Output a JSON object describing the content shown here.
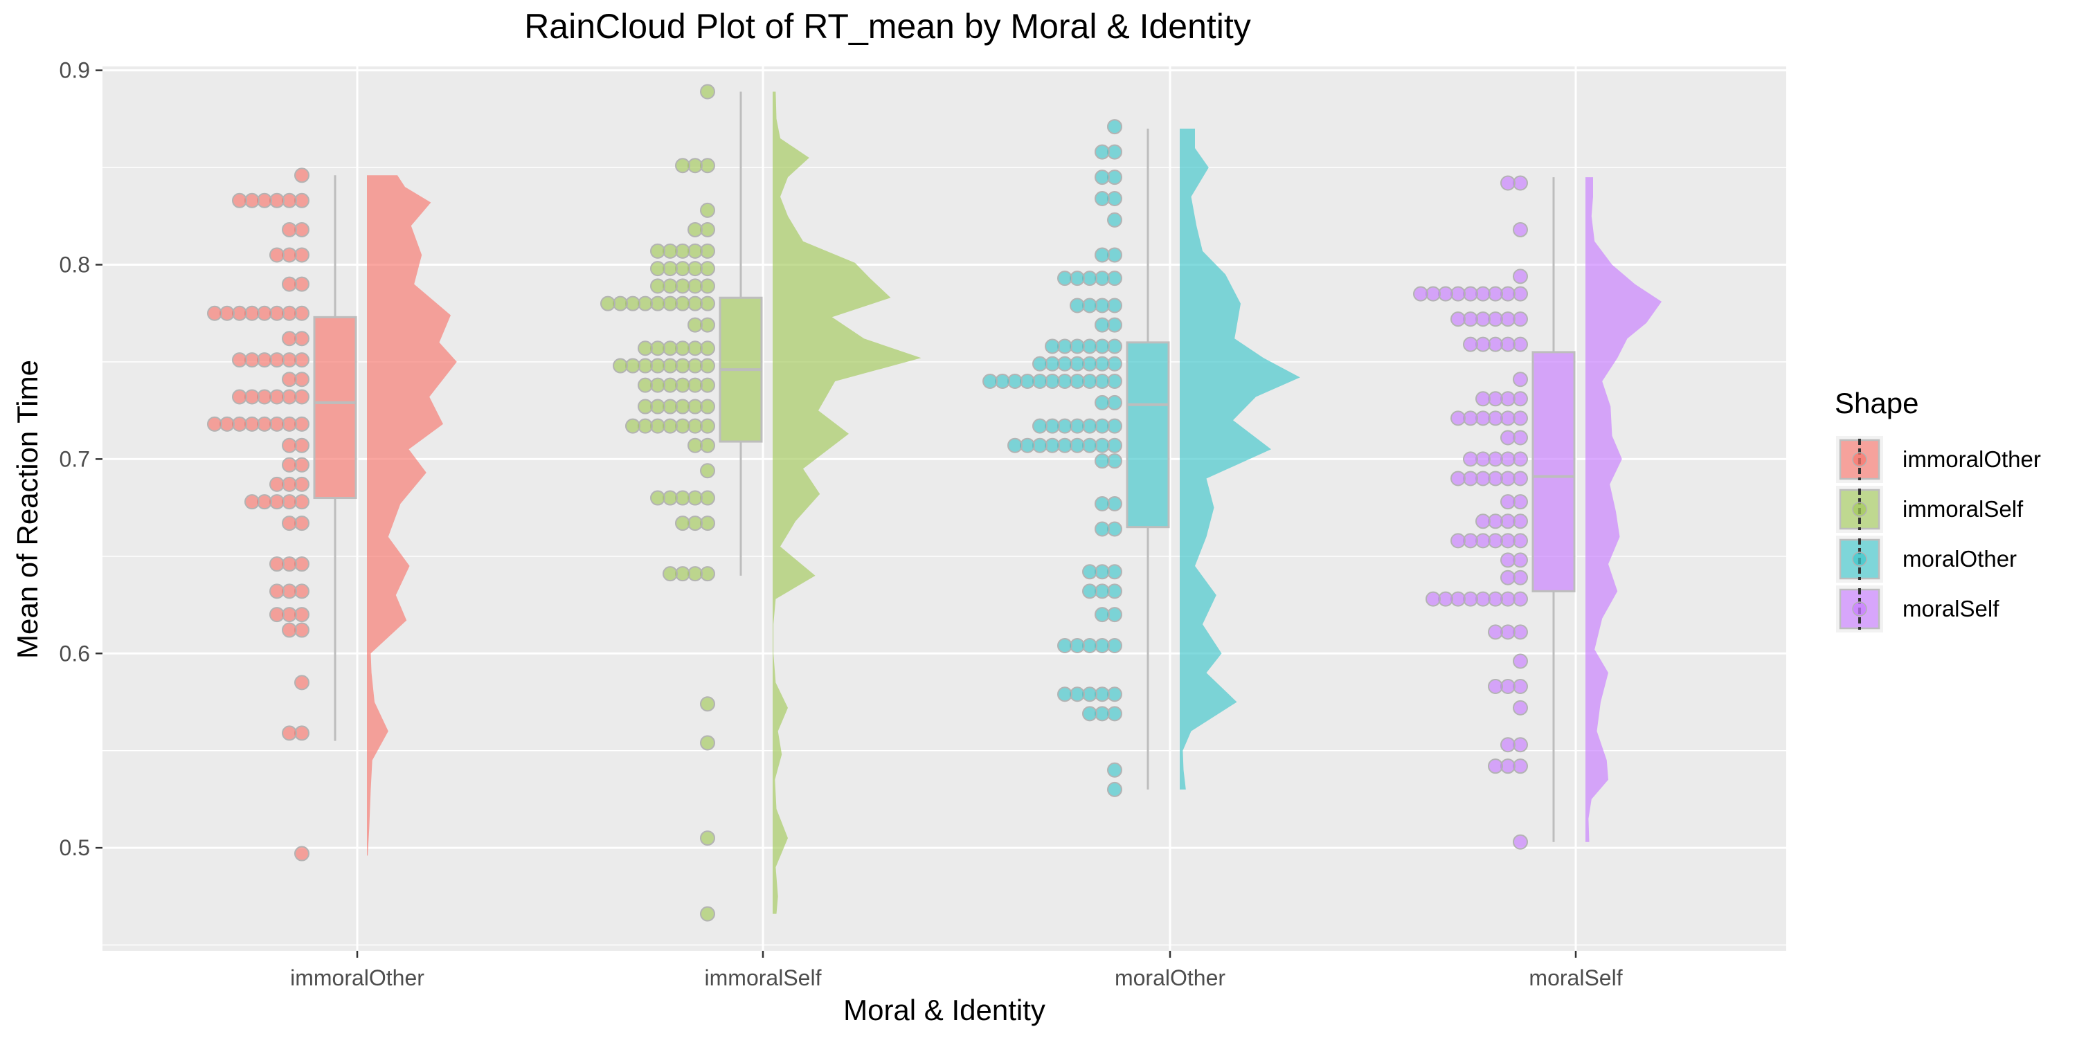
{
  "chart_data": {
    "type": "raincloud",
    "title": "RainCloud Plot of RT_mean by Moral & Identity",
    "xlabel": "Moral & Identity",
    "ylabel": "Mean of Reaction Time",
    "ylim": [
      0.447,
      0.902
    ],
    "yticks": [
      0.5,
      0.6,
      0.7,
      0.8,
      0.9
    ],
    "ytick_labels": [
      "0.5",
      "0.6",
      "0.7",
      "0.8",
      "0.9"
    ],
    "categories": [
      "immoralOther",
      "immoralSelf",
      "moralOther",
      "moralSelf"
    ],
    "legend": {
      "title": "Shape",
      "position": "right"
    },
    "grid": true,
    "series": [
      {
        "name": "immoralOther",
        "color": "#F8766D",
        "box": {
          "min": 0.555,
          "q1": 0.68,
          "median": 0.729,
          "q3": 0.773,
          "max": 0.846
        },
        "density_range": [
          0.496,
          0.846
        ],
        "density": [
          [
            0.496,
            0.01
          ],
          [
            0.51,
            0.03
          ],
          [
            0.53,
            0.05
          ],
          [
            0.545,
            0.07
          ],
          [
            0.56,
            0.28
          ],
          [
            0.575,
            0.1
          ],
          [
            0.59,
            0.06
          ],
          [
            0.6,
            0.05
          ],
          [
            0.617,
            0.52
          ],
          [
            0.63,
            0.38
          ],
          [
            0.645,
            0.56
          ],
          [
            0.66,
            0.28
          ],
          [
            0.677,
            0.44
          ],
          [
            0.693,
            0.78
          ],
          [
            0.705,
            0.55
          ],
          [
            0.718,
            1.0
          ],
          [
            0.732,
            0.82
          ],
          [
            0.75,
            1.18
          ],
          [
            0.76,
            0.95
          ],
          [
            0.774,
            1.1
          ],
          [
            0.79,
            0.62
          ],
          [
            0.805,
            0.72
          ],
          [
            0.82,
            0.58
          ],
          [
            0.832,
            0.84
          ],
          [
            0.84,
            0.5
          ],
          [
            0.846,
            0.4
          ]
        ],
        "points": [
          {
            "y": 0.846,
            "n": 1
          },
          {
            "y": 0.833,
            "n": 6
          },
          {
            "y": 0.818,
            "n": 2
          },
          {
            "y": 0.805,
            "n": 3
          },
          {
            "y": 0.79,
            "n": 2
          },
          {
            "y": 0.775,
            "n": 8
          },
          {
            "y": 0.762,
            "n": 2
          },
          {
            "y": 0.751,
            "n": 6
          },
          {
            "y": 0.741,
            "n": 2
          },
          {
            "y": 0.732,
            "n": 6
          },
          {
            "y": 0.718,
            "n": 8
          },
          {
            "y": 0.707,
            "n": 2
          },
          {
            "y": 0.697,
            "n": 2
          },
          {
            "y": 0.687,
            "n": 3
          },
          {
            "y": 0.678,
            "n": 5
          },
          {
            "y": 0.667,
            "n": 2
          },
          {
            "y": 0.646,
            "n": 3
          },
          {
            "y": 0.632,
            "n": 3
          },
          {
            "y": 0.62,
            "n": 3
          },
          {
            "y": 0.612,
            "n": 2
          },
          {
            "y": 0.585,
            "n": 1
          },
          {
            "y": 0.559,
            "n": 2
          },
          {
            "y": 0.497,
            "n": 1
          }
        ]
      },
      {
        "name": "immoralSelf",
        "color": "#A3C95A",
        "box": {
          "min": 0.64,
          "q1": 0.709,
          "median": 0.746,
          "q3": 0.783,
          "max": 0.889
        },
        "density_range": [
          0.466,
          0.889
        ],
        "density": [
          [
            0.466,
            0.05
          ],
          [
            0.475,
            0.07
          ],
          [
            0.49,
            0.04
          ],
          [
            0.505,
            0.2
          ],
          [
            0.52,
            0.05
          ],
          [
            0.535,
            0.03
          ],
          [
            0.548,
            0.12
          ],
          [
            0.56,
            0.07
          ],
          [
            0.572,
            0.2
          ],
          [
            0.585,
            0.04
          ],
          [
            0.6,
            0.01
          ],
          [
            0.615,
            0.01
          ],
          [
            0.628,
            0.04
          ],
          [
            0.64,
            0.56
          ],
          [
            0.655,
            0.1
          ],
          [
            0.668,
            0.3
          ],
          [
            0.682,
            0.62
          ],
          [
            0.695,
            0.4
          ],
          [
            0.713,
            1.0
          ],
          [
            0.725,
            0.6
          ],
          [
            0.74,
            0.82
          ],
          [
            0.752,
            1.95
          ],
          [
            0.762,
            1.2
          ],
          [
            0.773,
            0.78
          ],
          [
            0.783,
            1.55
          ],
          [
            0.793,
            1.28
          ],
          [
            0.801,
            1.08
          ],
          [
            0.812,
            0.4
          ],
          [
            0.825,
            0.2
          ],
          [
            0.835,
            0.1
          ],
          [
            0.845,
            0.2
          ],
          [
            0.855,
            0.48
          ],
          [
            0.865,
            0.1
          ],
          [
            0.875,
            0.05
          ],
          [
            0.889,
            0.04
          ]
        ],
        "points": [
          {
            "y": 0.889,
            "n": 1
          },
          {
            "y": 0.851,
            "n": 3
          },
          {
            "y": 0.828,
            "n": 1
          },
          {
            "y": 0.818,
            "n": 2
          },
          {
            "y": 0.807,
            "n": 5
          },
          {
            "y": 0.798,
            "n": 5
          },
          {
            "y": 0.789,
            "n": 5
          },
          {
            "y": 0.78,
            "n": 9
          },
          {
            "y": 0.769,
            "n": 2
          },
          {
            "y": 0.757,
            "n": 6
          },
          {
            "y": 0.748,
            "n": 8
          },
          {
            "y": 0.738,
            "n": 6
          },
          {
            "y": 0.727,
            "n": 6
          },
          {
            "y": 0.717,
            "n": 7
          },
          {
            "y": 0.707,
            "n": 2
          },
          {
            "y": 0.694,
            "n": 1
          },
          {
            "y": 0.68,
            "n": 5
          },
          {
            "y": 0.667,
            "n": 3
          },
          {
            "y": 0.641,
            "n": 4
          },
          {
            "y": 0.574,
            "n": 1
          },
          {
            "y": 0.554,
            "n": 1
          },
          {
            "y": 0.505,
            "n": 1
          },
          {
            "y": 0.466,
            "n": 1
          }
        ]
      },
      {
        "name": "moralOther",
        "color": "#3FC6CB",
        "box": {
          "min": 0.53,
          "q1": 0.665,
          "median": 0.728,
          "q3": 0.76,
          "max": 0.87
        },
        "density_range": [
          0.53,
          0.87
        ],
        "density": [
          [
            0.53,
            0.08
          ],
          [
            0.54,
            0.05
          ],
          [
            0.55,
            0.04
          ],
          [
            0.56,
            0.15
          ],
          [
            0.575,
            0.75
          ],
          [
            0.59,
            0.35
          ],
          [
            0.6,
            0.55
          ],
          [
            0.615,
            0.3
          ],
          [
            0.63,
            0.48
          ],
          [
            0.645,
            0.2
          ],
          [
            0.66,
            0.35
          ],
          [
            0.675,
            0.45
          ],
          [
            0.69,
            0.35
          ],
          [
            0.705,
            1.2
          ],
          [
            0.72,
            0.7
          ],
          [
            0.732,
            1.0
          ],
          [
            0.742,
            1.58
          ],
          [
            0.752,
            1.1
          ],
          [
            0.762,
            0.72
          ],
          [
            0.78,
            0.8
          ],
          [
            0.795,
            0.6
          ],
          [
            0.807,
            0.3
          ],
          [
            0.82,
            0.22
          ],
          [
            0.835,
            0.15
          ],
          [
            0.85,
            0.38
          ],
          [
            0.86,
            0.2
          ],
          [
            0.87,
            0.2
          ]
        ],
        "points": [
          {
            "y": 0.871,
            "n": 1
          },
          {
            "y": 0.858,
            "n": 2
          },
          {
            "y": 0.845,
            "n": 2
          },
          {
            "y": 0.834,
            "n": 2
          },
          {
            "y": 0.823,
            "n": 1
          },
          {
            "y": 0.805,
            "n": 2
          },
          {
            "y": 0.793,
            "n": 5
          },
          {
            "y": 0.779,
            "n": 4
          },
          {
            "y": 0.769,
            "n": 2
          },
          {
            "y": 0.758,
            "n": 6
          },
          {
            "y": 0.749,
            "n": 7
          },
          {
            "y": 0.74,
            "n": 11
          },
          {
            "y": 0.729,
            "n": 2
          },
          {
            "y": 0.717,
            "n": 7
          },
          {
            "y": 0.707,
            "n": 9
          },
          {
            "y": 0.699,
            "n": 2
          },
          {
            "y": 0.677,
            "n": 2
          },
          {
            "y": 0.664,
            "n": 2
          },
          {
            "y": 0.642,
            "n": 3
          },
          {
            "y": 0.632,
            "n": 3
          },
          {
            "y": 0.62,
            "n": 2
          },
          {
            "y": 0.604,
            "n": 5
          },
          {
            "y": 0.579,
            "n": 5
          },
          {
            "y": 0.569,
            "n": 3
          },
          {
            "y": 0.54,
            "n": 1
          },
          {
            "y": 0.53,
            "n": 1
          }
        ]
      },
      {
        "name": "moralSelf",
        "color": "#C77CFF",
        "box": {
          "min": 0.503,
          "q1": 0.632,
          "median": 0.691,
          "q3": 0.755,
          "max": 0.845
        },
        "density_range": [
          0.503,
          0.845
        ],
        "density": [
          [
            0.503,
            0.05
          ],
          [
            0.515,
            0.04
          ],
          [
            0.525,
            0.08
          ],
          [
            0.535,
            0.3
          ],
          [
            0.545,
            0.28
          ],
          [
            0.56,
            0.15
          ],
          [
            0.575,
            0.2
          ],
          [
            0.59,
            0.3
          ],
          [
            0.602,
            0.12
          ],
          [
            0.618,
            0.22
          ],
          [
            0.632,
            0.42
          ],
          [
            0.646,
            0.3
          ],
          [
            0.66,
            0.45
          ],
          [
            0.673,
            0.4
          ],
          [
            0.687,
            0.32
          ],
          [
            0.7,
            0.48
          ],
          [
            0.712,
            0.35
          ],
          [
            0.727,
            0.33
          ],
          [
            0.74,
            0.22
          ],
          [
            0.752,
            0.42
          ],
          [
            0.762,
            0.55
          ],
          [
            0.77,
            0.8
          ],
          [
            0.781,
            1.0
          ],
          [
            0.79,
            0.65
          ],
          [
            0.8,
            0.35
          ],
          [
            0.812,
            0.12
          ],
          [
            0.825,
            0.08
          ],
          [
            0.835,
            0.1
          ],
          [
            0.845,
            0.1
          ]
        ],
        "points": [
          {
            "y": 0.842,
            "n": 2
          },
          {
            "y": 0.818,
            "n": 1
          },
          {
            "y": 0.794,
            "n": 1
          },
          {
            "y": 0.785,
            "n": 9
          },
          {
            "y": 0.772,
            "n": 6
          },
          {
            "y": 0.759,
            "n": 5
          },
          {
            "y": 0.741,
            "n": 1
          },
          {
            "y": 0.731,
            "n": 4
          },
          {
            "y": 0.721,
            "n": 6
          },
          {
            "y": 0.711,
            "n": 2
          },
          {
            "y": 0.7,
            "n": 5
          },
          {
            "y": 0.69,
            "n": 6
          },
          {
            "y": 0.678,
            "n": 2
          },
          {
            "y": 0.668,
            "n": 4
          },
          {
            "y": 0.658,
            "n": 6
          },
          {
            "y": 0.648,
            "n": 2
          },
          {
            "y": 0.639,
            "n": 2
          },
          {
            "y": 0.628,
            "n": 8
          },
          {
            "y": 0.611,
            "n": 3
          },
          {
            "y": 0.596,
            "n": 1
          },
          {
            "y": 0.583,
            "n": 3
          },
          {
            "y": 0.572,
            "n": 1
          },
          {
            "y": 0.553,
            "n": 2
          },
          {
            "y": 0.542,
            "n": 3
          },
          {
            "y": 0.503,
            "n": 1
          }
        ]
      }
    ]
  }
}
